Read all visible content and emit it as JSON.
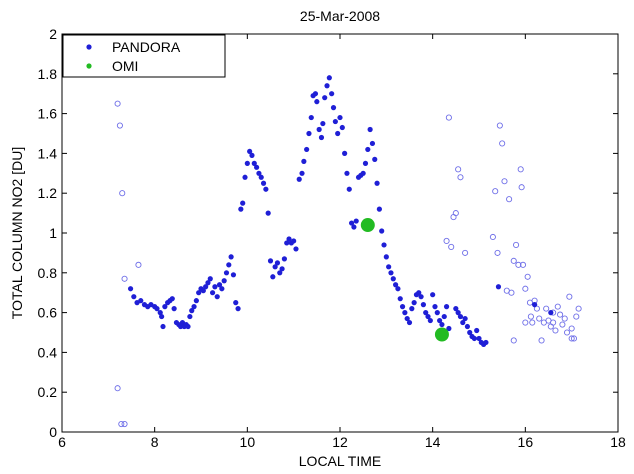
{
  "chart_data": {
    "type": "scatter",
    "title": "25-Mar-2008",
    "xlabel": "LOCAL TIME",
    "ylabel": "TOTAL COLUMN NO2 [DU]",
    "xlim": [
      6,
      18
    ],
    "ylim": [
      0,
      2
    ],
    "xticks": [
      6,
      8,
      10,
      12,
      14,
      16,
      18
    ],
    "yticks": [
      0,
      0.2,
      0.4,
      0.6,
      0.8,
      1,
      1.2,
      1.4,
      1.6,
      1.8,
      2
    ],
    "xtick_labels": [
      "6",
      "8",
      "10",
      "12",
      "14",
      "16",
      "18"
    ],
    "ytick_labels": [
      "0",
      "0.2",
      "0.4",
      "0.6",
      "0.8",
      "1",
      "1.2",
      "1.4",
      "1.6",
      "1.8",
      "2"
    ],
    "grid": false,
    "legend": {
      "position": "top-left",
      "entries": [
        "PANDORA",
        "OMI"
      ]
    },
    "series": [
      {
        "name": "PANDORA",
        "color": "#1f1fd6",
        "marker": "filled-dot",
        "points": [
          [
            7.48,
            0.72
          ],
          [
            7.55,
            0.68
          ],
          [
            7.62,
            0.65
          ],
          [
            7.7,
            0.66
          ],
          [
            7.78,
            0.64
          ],
          [
            7.85,
            0.63
          ],
          [
            7.92,
            0.64
          ],
          [
            8.0,
            0.63
          ],
          [
            8.05,
            0.62
          ],
          [
            8.12,
            0.6
          ],
          [
            8.15,
            0.58
          ],
          [
            8.18,
            0.53
          ],
          [
            8.22,
            0.63
          ],
          [
            8.28,
            0.65
          ],
          [
            8.33,
            0.66
          ],
          [
            8.38,
            0.67
          ],
          [
            8.42,
            0.62
          ],
          [
            8.47,
            0.55
          ],
          [
            8.52,
            0.54
          ],
          [
            8.56,
            0.53
          ],
          [
            8.6,
            0.55
          ],
          [
            8.64,
            0.53
          ],
          [
            8.68,
            0.54
          ],
          [
            8.72,
            0.53
          ],
          [
            8.76,
            0.58
          ],
          [
            8.8,
            0.61
          ],
          [
            8.85,
            0.63
          ],
          [
            8.9,
            0.66
          ],
          [
            8.95,
            0.7
          ],
          [
            9.0,
            0.72
          ],
          [
            9.05,
            0.71
          ],
          [
            9.1,
            0.73
          ],
          [
            9.15,
            0.75
          ],
          [
            9.2,
            0.77
          ],
          [
            9.25,
            0.7
          ],
          [
            9.3,
            0.73
          ],
          [
            9.35,
            0.68
          ],
          [
            9.4,
            0.74
          ],
          [
            9.45,
            0.72
          ],
          [
            9.5,
            0.76
          ],
          [
            9.55,
            0.8
          ],
          [
            9.6,
            0.84
          ],
          [
            9.65,
            0.88
          ],
          [
            9.7,
            0.79
          ],
          [
            9.75,
            0.65
          ],
          [
            9.8,
            0.62
          ],
          [
            9.86,
            1.12
          ],
          [
            9.9,
            1.15
          ],
          [
            9.95,
            1.28
          ],
          [
            10.0,
            1.35
          ],
          [
            10.05,
            1.41
          ],
          [
            10.1,
            1.39
          ],
          [
            10.15,
            1.35
          ],
          [
            10.2,
            1.33
          ],
          [
            10.25,
            1.3
          ],
          [
            10.3,
            1.28
          ],
          [
            10.35,
            1.25
          ],
          [
            10.4,
            1.22
          ],
          [
            10.45,
            1.1
          ],
          [
            10.5,
            0.86
          ],
          [
            10.55,
            0.78
          ],
          [
            10.6,
            0.83
          ],
          [
            10.65,
            0.85
          ],
          [
            10.7,
            0.8
          ],
          [
            10.75,
            0.82
          ],
          [
            10.8,
            0.87
          ],
          [
            10.85,
            0.95
          ],
          [
            10.9,
            0.97
          ],
          [
            10.95,
            0.95
          ],
          [
            11.0,
            0.96
          ],
          [
            11.05,
            0.92
          ],
          [
            11.12,
            1.27
          ],
          [
            11.18,
            1.3
          ],
          [
            11.22,
            1.36
          ],
          [
            11.28,
            1.42
          ],
          [
            11.33,
            1.5
          ],
          [
            11.38,
            1.58
          ],
          [
            11.42,
            1.69
          ],
          [
            11.47,
            1.7
          ],
          [
            11.5,
            1.66
          ],
          [
            11.55,
            1.52
          ],
          [
            11.6,
            1.48
          ],
          [
            11.63,
            1.55
          ],
          [
            11.67,
            1.68
          ],
          [
            11.72,
            1.74
          ],
          [
            11.77,
            1.78
          ],
          [
            11.82,
            1.7
          ],
          [
            11.86,
            1.63
          ],
          [
            11.9,
            1.56
          ],
          [
            11.95,
            1.5
          ],
          [
            12.0,
            1.58
          ],
          [
            12.05,
            1.53
          ],
          [
            12.1,
            1.4
          ],
          [
            12.15,
            1.3
          ],
          [
            12.2,
            1.22
          ],
          [
            12.25,
            1.05
          ],
          [
            12.3,
            1.03
          ],
          [
            12.35,
            1.06
          ],
          [
            12.4,
            1.28
          ],
          [
            12.45,
            1.29
          ],
          [
            12.5,
            1.3
          ],
          [
            12.55,
            1.35
          ],
          [
            12.6,
            1.42
          ],
          [
            12.65,
            1.52
          ],
          [
            12.7,
            1.45
          ],
          [
            12.75,
            1.37
          ],
          [
            12.8,
            1.25
          ],
          [
            12.85,
            1.12
          ],
          [
            12.9,
            1.01
          ],
          [
            12.95,
            0.94
          ],
          [
            13.0,
            0.88
          ],
          [
            13.05,
            0.83
          ],
          [
            13.1,
            0.8
          ],
          [
            13.15,
            0.77
          ],
          [
            13.2,
            0.74
          ],
          [
            13.25,
            0.72
          ],
          [
            13.3,
            0.67
          ],
          [
            13.35,
            0.63
          ],
          [
            13.4,
            0.6
          ],
          [
            13.45,
            0.57
          ],
          [
            13.5,
            0.55
          ],
          [
            13.55,
            0.62
          ],
          [
            13.6,
            0.65
          ],
          [
            13.65,
            0.69
          ],
          [
            13.7,
            0.7
          ],
          [
            13.75,
            0.68
          ],
          [
            13.8,
            0.64
          ],
          [
            13.85,
            0.6
          ],
          [
            13.9,
            0.58
          ],
          [
            13.95,
            0.56
          ],
          [
            14.0,
            0.69
          ],
          [
            14.05,
            0.63
          ],
          [
            14.1,
            0.6
          ],
          [
            14.15,
            0.56
          ],
          [
            14.2,
            0.54
          ],
          [
            14.25,
            0.58
          ],
          [
            14.3,
            0.63
          ],
          [
            14.35,
            0.52
          ],
          [
            14.5,
            0.62
          ],
          [
            14.55,
            0.6
          ],
          [
            14.6,
            0.58
          ],
          [
            14.65,
            0.55
          ],
          [
            14.7,
            0.57
          ],
          [
            14.75,
            0.53
          ],
          [
            14.8,
            0.5
          ],
          [
            14.85,
            0.48
          ],
          [
            14.9,
            0.47
          ],
          [
            14.95,
            0.51
          ],
          [
            15.0,
            0.47
          ],
          [
            15.05,
            0.45
          ],
          [
            15.1,
            0.44
          ],
          [
            15.15,
            0.45
          ],
          [
            15.42,
            0.73
          ],
          [
            16.2,
            0.64
          ],
          [
            16.55,
            0.6
          ]
        ]
      },
      {
        "name": "OMI",
        "color": "#22bb22",
        "marker": "large-filled-dot",
        "points": [
          [
            12.6,
            1.04
          ],
          [
            14.2,
            0.49
          ]
        ]
      },
      {
        "name": "",
        "color": "#6f6fe8",
        "marker": "open-circle",
        "points": [
          [
            7.2,
            1.65
          ],
          [
            7.25,
            1.54
          ],
          [
            7.3,
            1.2
          ],
          [
            7.35,
            0.77
          ],
          [
            7.65,
            0.84
          ],
          [
            7.2,
            0.22
          ],
          [
            7.28,
            0.04
          ],
          [
            7.35,
            0.04
          ],
          [
            14.3,
            0.96
          ],
          [
            14.35,
            1.58
          ],
          [
            14.4,
            0.93
          ],
          [
            14.45,
            1.08
          ],
          [
            14.5,
            1.1
          ],
          [
            14.55,
            1.32
          ],
          [
            14.6,
            1.28
          ],
          [
            14.7,
            0.9
          ],
          [
            15.3,
            0.98
          ],
          [
            15.35,
            1.21
          ],
          [
            15.4,
            0.9
          ],
          [
            15.45,
            1.54
          ],
          [
            15.5,
            1.45
          ],
          [
            15.55,
            1.26
          ],
          [
            15.6,
            0.71
          ],
          [
            15.65,
            1.17
          ],
          [
            15.7,
            0.7
          ],
          [
            15.75,
            0.86
          ],
          [
            15.8,
            0.94
          ],
          [
            15.85,
            0.84
          ],
          [
            15.9,
            1.32
          ],
          [
            15.92,
            1.23
          ],
          [
            15.95,
            0.84
          ],
          [
            16.0,
            0.72
          ],
          [
            16.05,
            0.78
          ],
          [
            16.1,
            0.65
          ],
          [
            16.12,
            0.58
          ],
          [
            16.15,
            0.55
          ],
          [
            16.2,
            0.66
          ],
          [
            16.25,
            0.62
          ],
          [
            16.3,
            0.57
          ],
          [
            16.35,
            0.46
          ],
          [
            16.4,
            0.55
          ],
          [
            16.45,
            0.62
          ],
          [
            16.5,
            0.56
          ],
          [
            16.55,
            0.53
          ],
          [
            16.6,
            0.55
          ],
          [
            16.65,
            0.51
          ],
          [
            16.7,
            0.63
          ],
          [
            16.75,
            0.59
          ],
          [
            16.8,
            0.54
          ],
          [
            16.85,
            0.57
          ],
          [
            16.9,
            0.5
          ],
          [
            16.95,
            0.68
          ],
          [
            17.0,
            0.52
          ],
          [
            17.05,
            0.47
          ],
          [
            17.1,
            0.58
          ],
          [
            17.15,
            0.62
          ],
          [
            15.75,
            0.46
          ],
          [
            16.0,
            0.55
          ],
          [
            16.6,
            0.6
          ],
          [
            17.0,
            0.47
          ]
        ]
      }
    ]
  }
}
